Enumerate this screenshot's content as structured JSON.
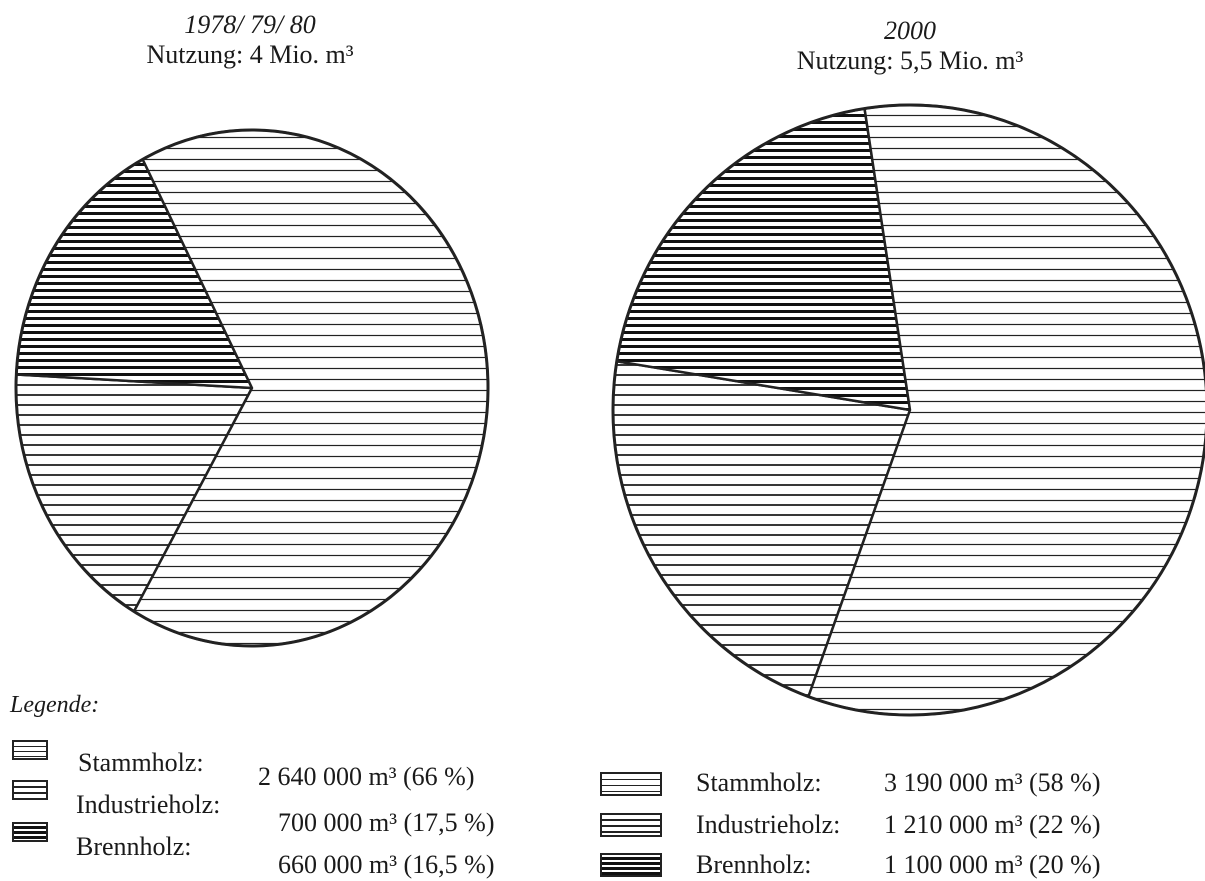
{
  "chart_data": [
    {
      "type": "pie",
      "title_year": "1978/ 79/ 80",
      "title_usage": "Nutzung: 4 Mio. m³",
      "slices": [
        {
          "name": "Stammholz",
          "value_m3": 2640000,
          "percent": 66,
          "value_label": "2 640 000 m³ (66 %)"
        },
        {
          "name": "Industrieholz",
          "value_m3": 700000,
          "percent": 17.5,
          "value_label": "700 000 m³ (17,5 %)"
        },
        {
          "name": "Brennholz",
          "value_m3": 660000,
          "percent": 16.5,
          "value_label": "660 000 m³ (16,5 %)"
        }
      ]
    },
    {
      "type": "pie",
      "title_year": "2000",
      "title_usage": "Nutzung: 5,5 Mio. m³",
      "slices": [
        {
          "name": "Stammholz",
          "value_m3": 3190000,
          "percent": 58,
          "value_label": "3 190 000 m³ (58 %)"
        },
        {
          "name": "Industrieholz",
          "value_m3": 1210000,
          "percent": 22,
          "value_label": "1 210 000 m³ (22 %)"
        },
        {
          "name": "Brennholz",
          "value_m3": 1100000,
          "percent": 20,
          "value_label": "1 100 000 m³ (20 %)"
        }
      ]
    }
  ],
  "legend": {
    "heading": "Legende:",
    "left": [
      {
        "name": "Stammholz:",
        "value": "2 640 000 m³ (66 %)"
      },
      {
        "name": "Industrieholz:",
        "value": "700 000 m³ (17,5 %)"
      },
      {
        "name": "Brennholz:",
        "value": "660 000 m³ (16,5 %)"
      }
    ],
    "right": [
      {
        "name": "Stammholz:",
        "value": "3 190 000 m³ (58 %)"
      },
      {
        "name": "Industrieholz:",
        "value": "1 210 000 m³ (22 %)"
      },
      {
        "name": "Brennholz:",
        "value": "1 100 000 m³ (20 %)"
      }
    ]
  },
  "patterns": {
    "Stammholz": "thin-horizontal-hatch",
    "Industrieholz": "medium-horizontal-hatch",
    "Brennholz": "bold-horizontal-hatch"
  }
}
